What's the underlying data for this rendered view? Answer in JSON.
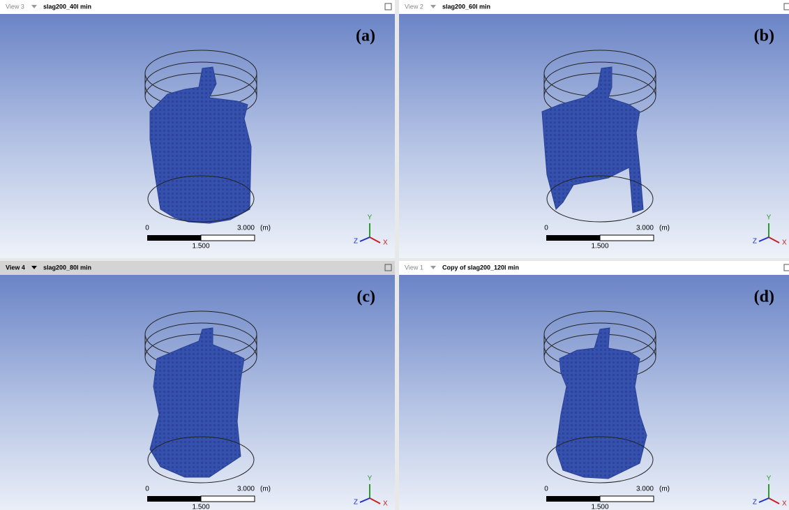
{
  "panels": [
    {
      "view": "View 3",
      "title": "slag200_40l min",
      "label": "(a)",
      "scale": {
        "start": "0",
        "end": "3.000",
        "unit": "(m)",
        "mid": "1.500"
      },
      "axes": {
        "x": "X",
        "y": "Y",
        "z": "Z"
      }
    },
    {
      "view": "View 2",
      "title": "slag200_60l min",
      "label": "(b)",
      "scale": {
        "start": "0",
        "end": "3.000",
        "unit": "(m)",
        "mid": "1.500"
      },
      "axes": {
        "x": "X",
        "y": "Y",
        "z": "Z"
      }
    },
    {
      "view": "View 4",
      "title": "slag200_80l min",
      "label": "(c)",
      "scale": {
        "start": "0",
        "end": "3.000",
        "unit": "(m)",
        "mid": "1.500"
      },
      "axes": {
        "x": "X",
        "y": "Y",
        "z": "Z"
      }
    },
    {
      "view": "View 1",
      "title": "Copy of slag200_120l min",
      "label": "(d)",
      "scale": {
        "start": "0",
        "end": "3.000",
        "unit": "(m)",
        "mid": "1.500"
      },
      "axes": {
        "x": "X",
        "y": "Y",
        "z": "Z"
      }
    }
  ]
}
